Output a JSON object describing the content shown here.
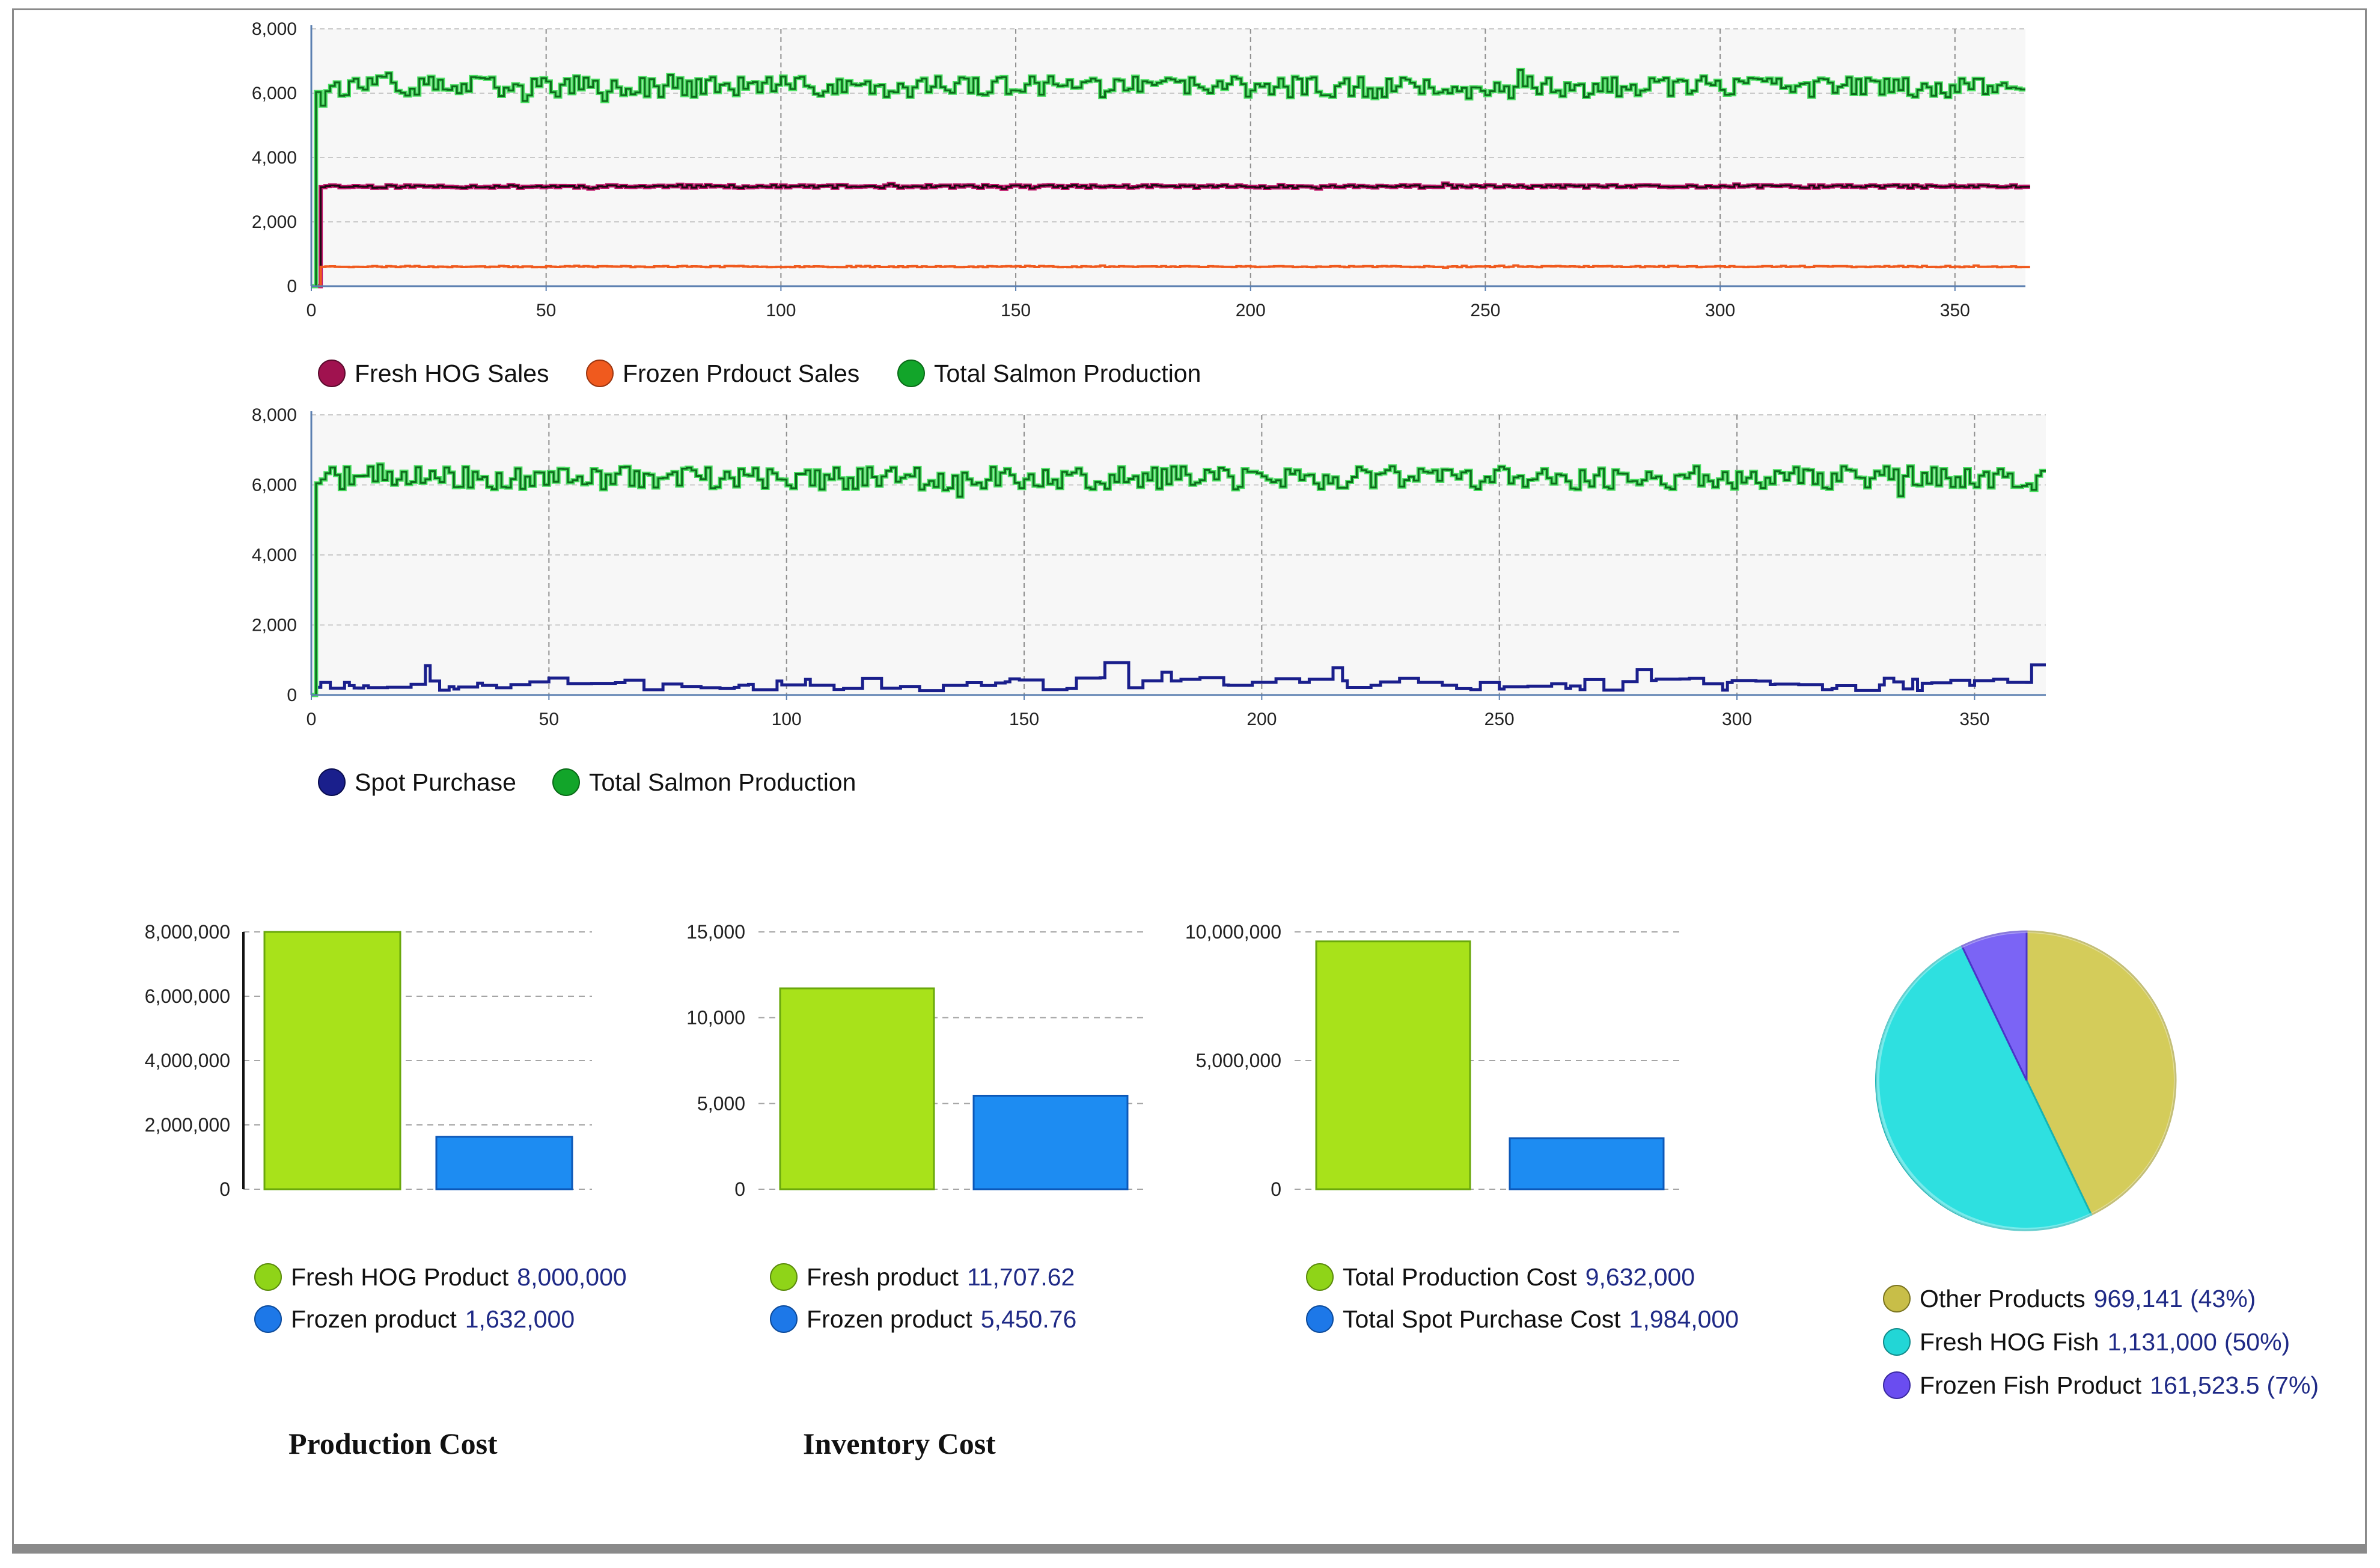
{
  "colors": {
    "fresh_hog_sales": "#a0124f",
    "frozen_sales": "#f05a1e",
    "total_salmon": "#12a52a",
    "spot_purchase": "#1a1f8c",
    "bar_green": "#a8e21a",
    "bar_blue": "#1d8cf2",
    "pie_other": "#d4cc5a",
    "pie_fresh": "#2ee0e0",
    "pie_frozen": "#7b64f5"
  },
  "chart_data": [
    {
      "type": "line",
      "id": "sales_production",
      "xlim": [
        0,
        365
      ],
      "ylim": [
        0,
        8000
      ],
      "x_ticks": [
        "0",
        "50",
        "100",
        "150",
        "200",
        "250",
        "300",
        "350"
      ],
      "y_ticks": [
        "0",
        "2,000",
        "4,000",
        "6,000",
        "8,000"
      ],
      "series": [
        {
          "name": "Fresh HOG Sales",
          "approx_level": 3100,
          "range": [
            3000,
            3200
          ],
          "start_day": 2
        },
        {
          "name": "Frozen Prdouct Sales",
          "approx_level": 600,
          "range": [
            550,
            700
          ],
          "start_day": 2
        },
        {
          "name": "Total Salmon Production",
          "approx_level": 6200,
          "range": [
            5200,
            7100
          ],
          "start_day": 1
        }
      ]
    },
    {
      "type": "line",
      "id": "spot_production",
      "xlim": [
        0,
        365
      ],
      "ylim": [
        0,
        8000
      ],
      "x_ticks": [
        "0",
        "50",
        "100",
        "150",
        "200",
        "250",
        "300",
        "350"
      ],
      "y_ticks": [
        "0",
        "2,000",
        "4,000",
        "6,000",
        "8,000"
      ],
      "series": [
        {
          "name": "Spot Purchase",
          "approx_level": 300,
          "range": [
            100,
            1100
          ],
          "start_day": 1
        },
        {
          "name": "Total Salmon Production",
          "approx_level": 6200,
          "range": [
            5300,
            7100
          ],
          "start_day": 1
        }
      ]
    },
    {
      "type": "bar",
      "id": "production_cost",
      "title": "Production Cost",
      "categories": [
        "Fresh HOG Product",
        "Frozen product"
      ],
      "values": [
        8000000,
        1632000
      ],
      "value_labels": [
        "8,000,000",
        "1,632,000"
      ],
      "ylim": [
        0,
        8000000
      ],
      "y_ticks": [
        "0",
        "2,000,000",
        "4,000,000",
        "6,000,000",
        "8,000,000"
      ]
    },
    {
      "type": "bar",
      "id": "inventory_cost",
      "title": "Inventory Cost",
      "categories": [
        "Fresh product",
        "Frozen product"
      ],
      "values": [
        11707.62,
        5450.76
      ],
      "value_labels": [
        "11,707.62",
        "5,450.76"
      ],
      "ylim": [
        0,
        15000
      ],
      "y_ticks": [
        "0",
        "5,000",
        "10,000",
        "15,000"
      ]
    },
    {
      "type": "bar",
      "id": "total_cost",
      "categories": [
        "Total Production Cost",
        "Total Spot Purchase Cost"
      ],
      "values": [
        9632000,
        1984000
      ],
      "value_labels": [
        "9,632,000",
        "1,984,000"
      ],
      "ylim": [
        0,
        10000000
      ],
      "y_ticks": [
        "0",
        "5,000,000",
        "10,000,000"
      ]
    },
    {
      "type": "pie",
      "id": "product_share",
      "labels": [
        "Other Products",
        "Fresh HOG Fish",
        "Frozen Fish Product"
      ],
      "values": [
        969141,
        1131000,
        161523.5
      ],
      "value_labels": [
        "969,141",
        "1,131,000",
        "161,523.5"
      ],
      "percent_labels": [
        "(43%)",
        "(50%)",
        "(7%)"
      ]
    }
  ]
}
